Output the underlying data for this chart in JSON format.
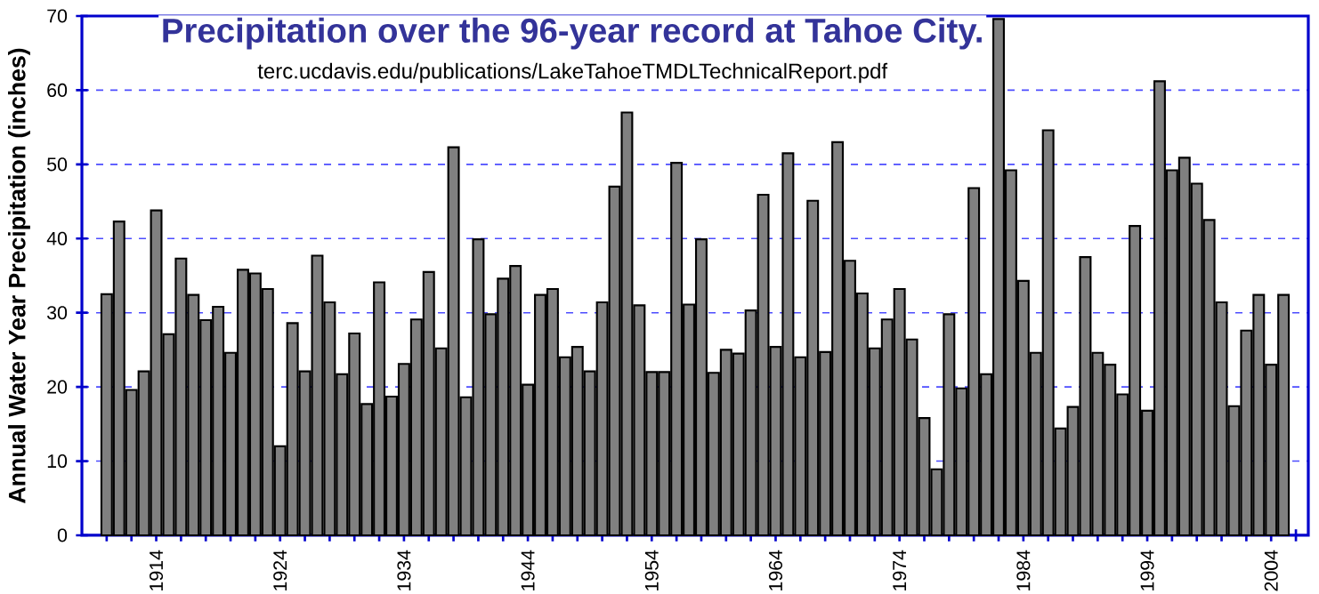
{
  "chart_data": {
    "type": "bar",
    "title": "Precipitation over the 96-year record at Tahoe City.",
    "subtitle": "terc.ucdavis.edu/publications/LakeTahoeTMDLTechnicalReport.pdf",
    "ylabel": "Annual Water Year Precipitation (inches)",
    "x": [
      1910,
      1911,
      1912,
      1913,
      1914,
      1915,
      1916,
      1917,
      1918,
      1919,
      1920,
      1921,
      1922,
      1923,
      1924,
      1925,
      1926,
      1927,
      1928,
      1929,
      1930,
      1931,
      1932,
      1933,
      1934,
      1935,
      1936,
      1937,
      1938,
      1939,
      1940,
      1941,
      1942,
      1943,
      1944,
      1945,
      1946,
      1947,
      1948,
      1949,
      1950,
      1951,
      1952,
      1953,
      1954,
      1955,
      1956,
      1957,
      1958,
      1959,
      1960,
      1961,
      1962,
      1963,
      1964,
      1965,
      1966,
      1967,
      1968,
      1969,
      1970,
      1971,
      1972,
      1973,
      1974,
      1975,
      1976,
      1977,
      1978,
      1979,
      1980,
      1981,
      1982,
      1983,
      1984,
      1985,
      1986,
      1987,
      1988,
      1989,
      1990,
      1991,
      1992,
      1993,
      1994,
      1995,
      1996,
      1997,
      1998,
      1999,
      2000,
      2001,
      2002,
      2003,
      2004,
      2005
    ],
    "values": [
      32.5,
      42.3,
      19.6,
      22.1,
      43.8,
      27.1,
      37.3,
      32.4,
      29.0,
      30.8,
      24.6,
      35.8,
      35.3,
      33.2,
      12.0,
      28.6,
      22.1,
      37.7,
      31.4,
      21.7,
      27.2,
      17.7,
      34.1,
      18.7,
      23.1,
      29.1,
      35.5,
      25.2,
      52.3,
      18.6,
      39.9,
      29.8,
      34.6,
      36.3,
      20.3,
      32.4,
      33.2,
      24.0,
      25.4,
      22.1,
      31.4,
      47.0,
      57.0,
      31.0,
      22.0,
      22.0,
      50.2,
      31.1,
      39.9,
      21.9,
      25.0,
      24.5,
      30.3,
      45.9,
      25.4,
      51.5,
      24.0,
      45.1,
      24.7,
      53.0,
      37.0,
      32.6,
      25.2,
      29.1,
      33.2,
      26.4,
      15.8,
      8.9,
      29.8,
      19.8,
      46.8,
      21.7,
      69.6,
      49.2,
      34.3,
      24.6,
      54.6,
      14.4,
      17.3,
      37.5,
      24.6,
      23.0,
      19.0,
      41.7,
      16.8,
      61.2,
      49.2,
      50.9,
      47.4,
      42.5,
      31.4,
      17.4,
      27.6,
      32.4,
      23.0,
      32.4
    ],
    "color": "#808080",
    "xlim": [
      1908,
      2007
    ],
    "xticks": [
      {
        "value": 1910,
        "label": null
      },
      {
        "value": 1912,
        "label": null
      },
      1914,
      {
        "value": 1916,
        "label": null
      },
      {
        "value": 1918,
        "label": null
      },
      {
        "value": 1920,
        "label": null
      },
      {
        "value": 1922,
        "label": null
      },
      1924,
      {
        "value": 1926,
        "label": null
      },
      {
        "value": 1928,
        "label": null
      },
      {
        "value": 1930,
        "label": null
      },
      {
        "value": 1932,
        "label": null
      },
      1934,
      {
        "value": 1936,
        "label": null
      },
      {
        "value": 1938,
        "label": null
      },
      {
        "value": 1940,
        "label": null
      },
      {
        "value": 1942,
        "label": null
      },
      1944,
      {
        "value": 1946,
        "label": null
      },
      {
        "value": 1948,
        "label": null
      },
      {
        "value": 1950,
        "label": null
      },
      {
        "value": 1952,
        "label": null
      },
      1954,
      {
        "value": 1956,
        "label": null
      },
      {
        "value": 1958,
        "label": null
      },
      {
        "value": 1960,
        "label": null
      },
      {
        "value": 1962,
        "label": null
      },
      1964,
      {
        "value": 1966,
        "label": null
      },
      {
        "value": 1968,
        "label": null
      },
      {
        "value": 1970,
        "label": null
      },
      {
        "value": 1972,
        "label": null
      },
      1974,
      {
        "value": 1976,
        "label": null
      },
      {
        "value": 1978,
        "label": null
      },
      {
        "value": 1980,
        "label": null
      },
      {
        "value": 1982,
        "label": null
      },
      1984,
      {
        "value": 1986,
        "label": null
      },
      {
        "value": 1988,
        "label": null
      },
      {
        "value": 1990,
        "label": null
      },
      {
        "value": 1992,
        "label": null
      },
      1994,
      {
        "value": 1996,
        "label": null
      },
      {
        "value": 1998,
        "label": null
      },
      {
        "value": 2000,
        "label": null
      },
      {
        "value": 2002,
        "label": null
      },
      2004,
      {
        "value": 2006,
        "label": null
      }
    ],
    "ylim": [
      0,
      70
    ],
    "yticks": [
      0,
      10,
      20,
      30,
      40,
      50,
      60,
      70
    ],
    "grid": "y"
  }
}
